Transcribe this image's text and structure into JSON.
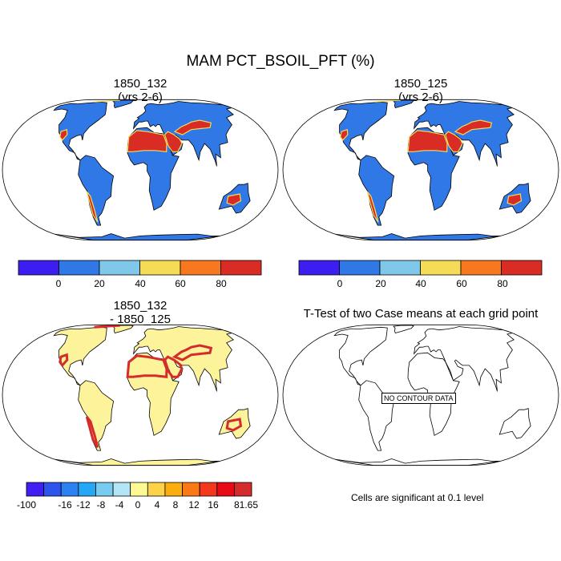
{
  "figure": {
    "title": "MAM PCT_BSOIL_PFT (%)",
    "note": "Cells are significant at 0.1 level"
  },
  "panels": [
    {
      "title_line1": "1850_132",
      "title_line2": "(yrs 2-6)"
    },
    {
      "title_line1": "1850_125",
      "title_line2": "(yrs 2-6)"
    },
    {
      "title_line1": "1850_132",
      "title_line2": "- 1850_125"
    },
    {
      "title_line1": "T-Test of two Case means at each grid point",
      "title_line2": "",
      "overlay": "NO CONTOUR DATA"
    }
  ],
  "colorbars": {
    "top": {
      "colors": [
        "#3c1ef0",
        "#2f78e6",
        "#80c8ea",
        "#f4dc56",
        "#f7781e",
        "#d82c24"
      ],
      "labels": [
        "0",
        "20",
        "40",
        "60",
        "80"
      ]
    },
    "diff": {
      "colors": [
        "#3f1ff2",
        "#2d54ec",
        "#2c82f3",
        "#24a8f5",
        "#78ccf0",
        "#b2e6f7",
        "#fdfa96",
        "#fbd248",
        "#fbad10",
        "#fb7817",
        "#f3381e",
        "#e80a14",
        "#d42c2c"
      ],
      "labels": [
        "-100",
        "-16",
        "-12",
        "-8",
        "-4",
        "0",
        "4",
        "8",
        "12",
        "16",
        "81.65"
      ]
    }
  },
  "colors": {
    "land_value": "#2f78e6",
    "desert_value": "#d82c24",
    "diff_land": "#fdf39a",
    "ocean": "#ffffff"
  }
}
